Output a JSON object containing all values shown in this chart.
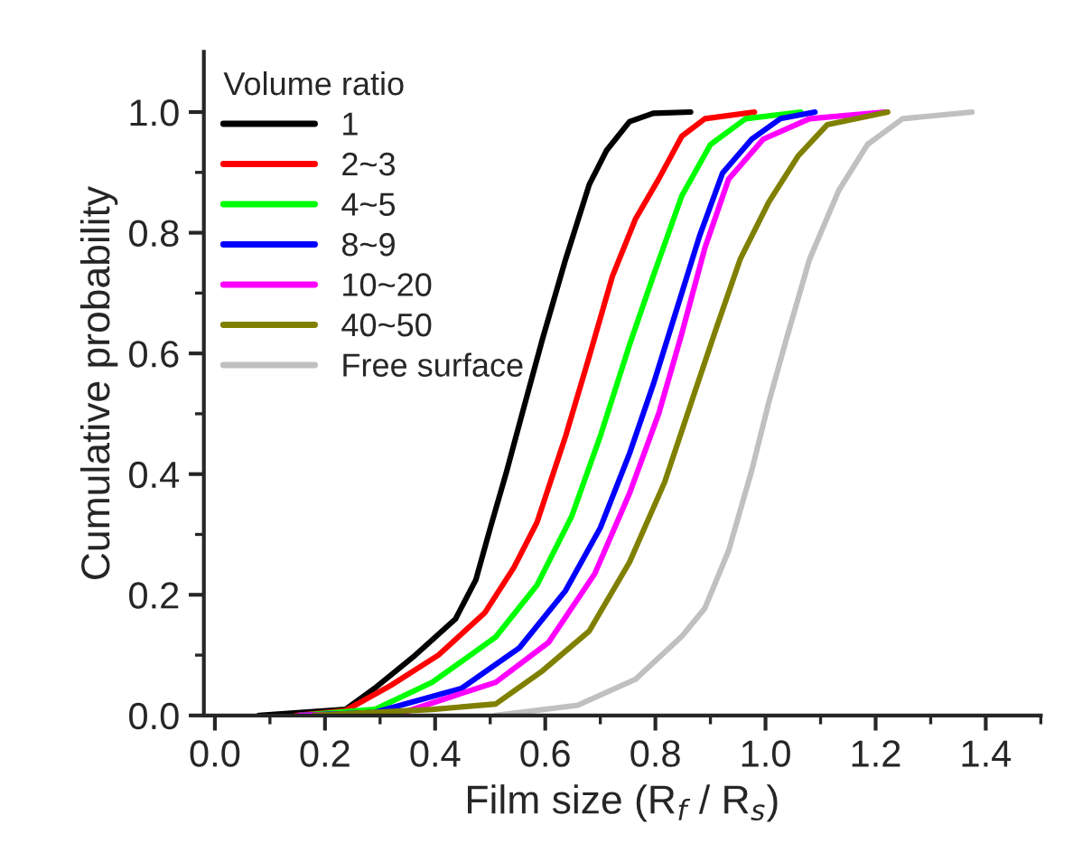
{
  "chart_data": {
    "type": "line",
    "xlabel": "Film size (R$_{f}$ / R$_{s}$)",
    "ylabel": "Cumulative probability",
    "legend_title": "Volume ratio",
    "legend": "top left",
    "grid": false,
    "line_style": "solid",
    "xlim": [
      -0.02,
      1.5
    ],
    "ylim": [
      0,
      1.1
    ],
    "xticks": [
      {
        "value": 0,
        "label": "0.0"
      },
      0.2,
      0.4,
      0.6,
      0.8,
      {
        "value": 1,
        "label": "1.0"
      },
      1.2,
      1.4
    ],
    "yticks": [
      {
        "value": 0,
        "label": "0.0"
      },
      0.2,
      0.4,
      0.6,
      0.8,
      {
        "value": 1,
        "label": "1.0"
      }
    ],
    "series": [
      {
        "name": "1",
        "color": "#000000",
        "x": [
          0.08,
          0.237,
          0.29,
          0.364,
          0.437,
          0.474,
          0.5,
          0.53,
          0.558,
          0.595,
          0.637,
          0.68,
          0.711,
          0.753,
          0.796,
          0.864
        ],
        "values": [
          0,
          0.01,
          0.045,
          0.1,
          0.16,
          0.225,
          0.31,
          0.405,
          0.5,
          0.624,
          0.756,
          0.88,
          0.936,
          0.984,
          0.998,
          1.0
        ]
      },
      {
        "name": "2~3",
        "color": "#ff0000",
        "x": [
          0.148,
          0.237,
          0.32,
          0.406,
          0.49,
          0.543,
          0.585,
          0.637,
          0.68,
          0.722,
          0.764,
          0.806,
          0.848,
          0.89,
          0.98
        ],
        "values": [
          0,
          0.008,
          0.05,
          0.1,
          0.17,
          0.245,
          0.32,
          0.463,
          0.595,
          0.728,
          0.823,
          0.889,
          0.96,
          0.989,
          1.0
        ]
      },
      {
        "name": "4~5",
        "color": "#00ff00",
        "x": [
          0.153,
          0.29,
          0.395,
          0.51,
          0.585,
          0.648,
          0.7,
          0.753,
          0.796,
          0.848,
          0.9,
          0.964,
          1.064
        ],
        "values": [
          0,
          0.01,
          0.055,
          0.13,
          0.216,
          0.33,
          0.463,
          0.614,
          0.728,
          0.861,
          0.946,
          0.989,
          1.0
        ]
      },
      {
        "name": "8~9",
        "color": "#0000ff",
        "x": [
          0.153,
          0.29,
          0.448,
          0.553,
          0.637,
          0.7,
          0.753,
          0.796,
          0.838,
          0.88,
          0.922,
          0.975,
          1.027,
          1.09
        ],
        "values": [
          0,
          0.005,
          0.045,
          0.112,
          0.207,
          0.311,
          0.434,
          0.548,
          0.671,
          0.794,
          0.899,
          0.955,
          0.989,
          1.0
        ]
      },
      {
        "name": "10~20",
        "color": "#ff00ff",
        "x": [
          0.153,
          0.342,
          0.51,
          0.606,
          0.69,
          0.753,
          0.806,
          0.848,
          0.89,
          0.933,
          0.996,
          1.08,
          1.217
        ],
        "values": [
          0,
          0.005,
          0.055,
          0.121,
          0.235,
          0.368,
          0.5,
          0.633,
          0.775,
          0.889,
          0.955,
          0.989,
          1.0
        ]
      },
      {
        "name": "40~50",
        "color": "#808000",
        "x": [
          0.18,
          0.395,
          0.51,
          0.595,
          0.68,
          0.753,
          0.817,
          0.869,
          0.911,
          0.954,
          1.006,
          1.059,
          1.112,
          1.222
        ],
        "values": [
          0,
          0.01,
          0.019,
          0.074,
          0.14,
          0.254,
          0.387,
          0.529,
          0.643,
          0.756,
          0.851,
          0.927,
          0.979,
          1.0
        ]
      },
      {
        "name": "Free surface",
        "color": "#c0c0c0",
        "x": [
          0.51,
          0.659,
          0.764,
          0.848,
          0.89,
          0.933,
          0.975,
          1.006,
          1.038,
          1.08,
          1.133,
          1.185,
          1.249,
          1.375
        ],
        "values": [
          0,
          0.017,
          0.06,
          0.131,
          0.178,
          0.273,
          0.406,
          0.519,
          0.624,
          0.756,
          0.87,
          0.946,
          0.989,
          1.0
        ]
      }
    ]
  }
}
